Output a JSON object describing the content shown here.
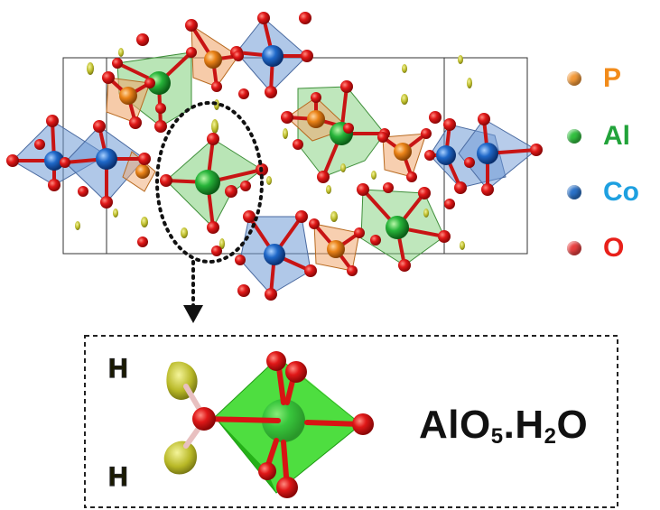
{
  "legend": [
    {
      "label": "P",
      "color": "#f28b1a",
      "dot": "#f39a3a"
    },
    {
      "label": "Al",
      "color": "#22a33a",
      "dot": "#33c040"
    },
    {
      "label": "Co",
      "color": "#1ea0e0",
      "dot": "#2b72c8"
    },
    {
      "label": "O",
      "color": "#e8201a",
      "dot": "#e84040"
    }
  ],
  "inset": {
    "h_top": "H",
    "h_bottom": "H",
    "formula_main": "AlO",
    "formula_sub1": "5",
    "formula_mid": ".H",
    "formula_sub2": "2",
    "formula_end": "O"
  },
  "colors": {
    "oxygen": "#d8141a",
    "aluminum_poly": "#7fd07a",
    "cobalt_poly": "#6f9ad6",
    "phosphorus_poly": "#f0a870",
    "hydrogen_density": "#d8d848",
    "inset_octahedron": "#33dd22"
  }
}
